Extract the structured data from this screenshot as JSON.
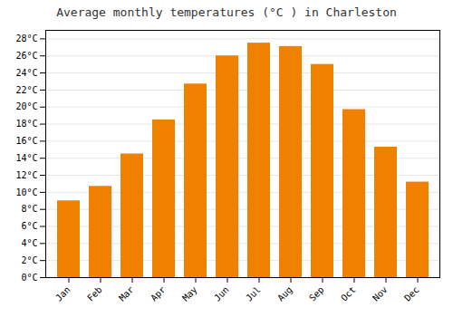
{
  "chart_data": {
    "type": "bar",
    "title": "Average monthly temperatures (°C ) in Charleston",
    "categories": [
      "Jan",
      "Feb",
      "Mar",
      "Apr",
      "May",
      "Jun",
      "Jul",
      "Aug",
      "Sep",
      "Oct",
      "Nov",
      "Dec"
    ],
    "values": [
      9.0,
      10.7,
      14.5,
      18.5,
      22.7,
      26.0,
      27.5,
      27.1,
      25.0,
      19.7,
      15.3,
      11.2
    ],
    "color": "#F08000",
    "ylim": [
      0,
      29
    ],
    "yticks": [
      {
        "value": 0,
        "label": "0°C"
      },
      {
        "value": 2,
        "label": "2°C"
      },
      {
        "value": 4,
        "label": "4°C"
      },
      {
        "value": 6,
        "label": "6°C"
      },
      {
        "value": 8,
        "label": "8°C"
      },
      {
        "value": 10,
        "label": "10°C"
      },
      {
        "value": 12,
        "label": "12°C"
      },
      {
        "value": 14,
        "label": "14°C"
      },
      {
        "value": 16,
        "label": "16°C"
      },
      {
        "value": 18,
        "label": "18°C"
      },
      {
        "value": 20,
        "label": "20°C"
      },
      {
        "value": 22,
        "label": "22°C"
      },
      {
        "value": 24,
        "label": "24°C"
      },
      {
        "value": 26,
        "label": "26°C"
      },
      {
        "value": 28,
        "label": "28°C"
      }
    ],
    "grid": true
  }
}
